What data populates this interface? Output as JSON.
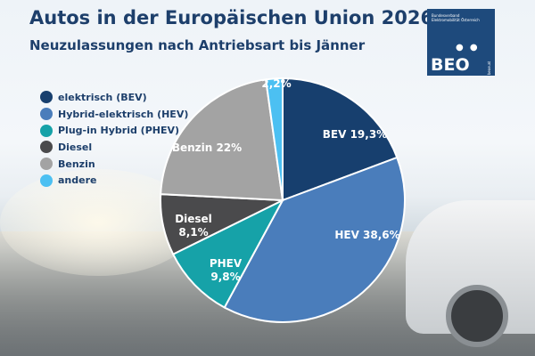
{
  "logo": {
    "org": "Bundesverband Elektromobilität Österreich",
    "abbr": "BEO",
    "url": "beoe.at"
  },
  "chart_data": {
    "type": "pie",
    "title": "Autos in der Europäischen Union 2026",
    "subtitle": "Neuzulassungen nach Antriebsart bis Jänner",
    "legend_position": "left",
    "slices": [
      {
        "legend": "elektrisch (BEV)",
        "label": "BEV 19,3%",
        "value": 19.3,
        "color": "#173f6e"
      },
      {
        "legend": "Hybrid-elektrisch (HEV)",
        "label": "HEV 38,6%",
        "value": 38.6,
        "color": "#4a7dbb"
      },
      {
        "legend": "Plug-in Hybrid (PHEV)",
        "label": "PHEV 9,8%",
        "value": 9.8,
        "color": "#16a2a8"
      },
      {
        "legend": "Diesel",
        "label": "Diesel 8,1%",
        "value": 8.1,
        "color": "#4a4a4c"
      },
      {
        "legend": "Benzin",
        "label": "Benzin 22%",
        "value": 22,
        "color": "#a3a3a3"
      },
      {
        "legend": "andere",
        "label": "2,2%",
        "value": 2.2,
        "color": "#4cc0f2"
      }
    ]
  }
}
